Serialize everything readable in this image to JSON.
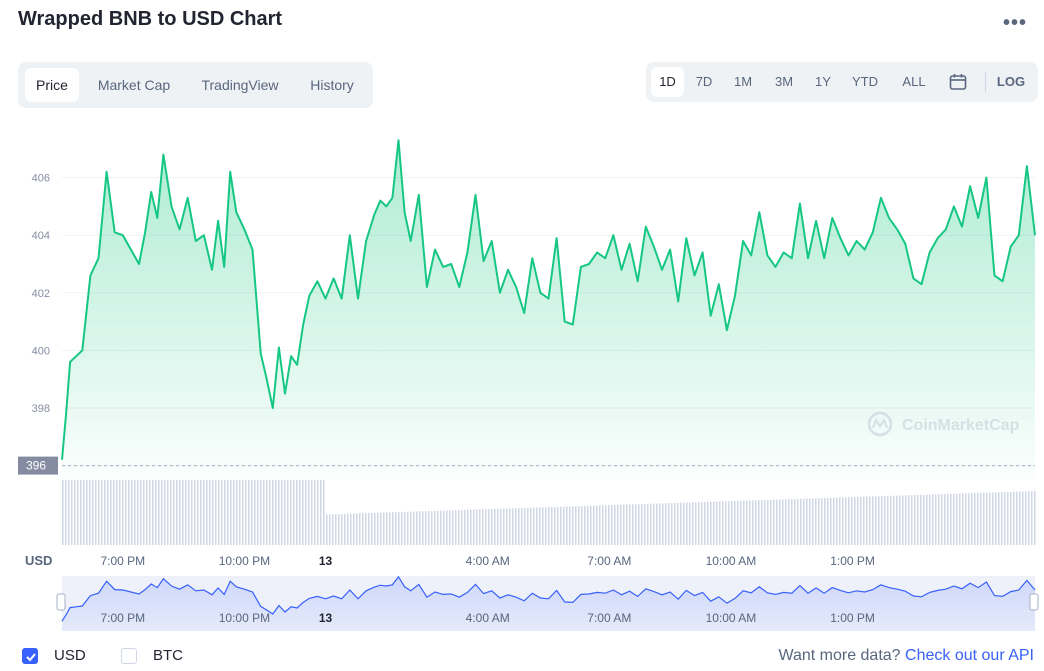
{
  "header": {
    "title": "Wrapped BNB to USD Chart",
    "menu_icon": "more-horizontal-icon"
  },
  "tabs": [
    {
      "label": "Price",
      "active": true
    },
    {
      "label": "Market Cap",
      "active": false
    },
    {
      "label": "TradingView",
      "active": false
    },
    {
      "label": "History",
      "active": false
    }
  ],
  "ranges": [
    {
      "label": "1D",
      "active": true
    },
    {
      "label": "7D",
      "active": false
    },
    {
      "label": "1M",
      "active": false
    },
    {
      "label": "3M",
      "active": false
    },
    {
      "label": "1Y",
      "active": false
    },
    {
      "label": "YTD",
      "active": false
    },
    {
      "label": "ALL",
      "active": false
    }
  ],
  "range_calendar_icon": "calendar-icon",
  "log_label": "LOG",
  "watermark": "CoinMarketCap",
  "currency_label": "USD",
  "current_price_marker": "396",
  "colors": {
    "line": "#16c784",
    "volume": "#cfd6e4",
    "accent": "#3861fb",
    "navigator_fill": "#e7ebfb",
    "navigator_line": "#3861fb"
  },
  "chart_data": {
    "type": "area",
    "ylim": [
      395.5,
      408
    ],
    "yticks": [
      396,
      398,
      400,
      402,
      404,
      406
    ],
    "x_tick_labels": [
      "7:00 PM",
      "10:00 PM",
      "13",
      "4:00 AM",
      "7:00 AM",
      "10:00 AM",
      "1:00 PM"
    ],
    "x_tick_hours": [
      1.5,
      4.5,
      6.5,
      10.5,
      13.5,
      16.5,
      19.5
    ],
    "x_range_hours": [
      0,
      24
    ],
    "price_series": {
      "x_hours": [
        0,
        0.1,
        0.2,
        0.35,
        0.5,
        0.7,
        0.9,
        1.1,
        1.3,
        1.5,
        1.7,
        1.9,
        2.05,
        2.2,
        2.35,
        2.5,
        2.7,
        2.9,
        3.1,
        3.3,
        3.5,
        3.7,
        3.85,
        4.0,
        4.15,
        4.3,
        4.5,
        4.7,
        4.9,
        5.05,
        5.2,
        5.35,
        5.5,
        5.65,
        5.8,
        5.95,
        6.1,
        6.3,
        6.5,
        6.7,
        6.9,
        7.1,
        7.3,
        7.5,
        7.7,
        7.85,
        8.0,
        8.15,
        8.3,
        8.45,
        8.6,
        8.8,
        9.0,
        9.2,
        9.4,
        9.6,
        9.8,
        10.0,
        10.2,
        10.4,
        10.6,
        10.8,
        11.0,
        11.2,
        11.4,
        11.6,
        11.8,
        12.0,
        12.2,
        12.4,
        12.6,
        12.8,
        13.0,
        13.2,
        13.4,
        13.6,
        13.8,
        14.0,
        14.2,
        14.4,
        14.6,
        14.8,
        15.0,
        15.2,
        15.4,
        15.6,
        15.8,
        16.0,
        16.2,
        16.4,
        16.6,
        16.8,
        17.0,
        17.2,
        17.4,
        17.6,
        17.8,
        18.0,
        18.2,
        18.4,
        18.6,
        18.8,
        19.0,
        19.2,
        19.4,
        19.6,
        19.8,
        20.0,
        20.2,
        20.4,
        20.6,
        20.8,
        21.0,
        21.2,
        21.4,
        21.6,
        21.8,
        22.0,
        22.2,
        22.4,
        22.6,
        22.8,
        23.0,
        23.2,
        23.4,
        23.6,
        23.8,
        24.0
      ],
      "y": [
        396.2,
        397.8,
        399.6,
        399.8,
        400.0,
        402.6,
        403.2,
        406.2,
        404.1,
        404.0,
        403.5,
        403.0,
        404.1,
        405.5,
        404.6,
        406.8,
        405.0,
        404.2,
        405.3,
        403.8,
        404.0,
        402.8,
        404.5,
        402.9,
        406.2,
        404.8,
        404.2,
        403.5,
        399.9,
        399.0,
        398.0,
        400.1,
        398.5,
        399.8,
        399.5,
        400.9,
        401.9,
        402.4,
        401.8,
        402.5,
        401.8,
        404.0,
        401.8,
        403.8,
        404.7,
        405.2,
        405.0,
        405.3,
        407.3,
        404.8,
        403.8,
        405.4,
        402.2,
        403.5,
        402.9,
        403.0,
        402.2,
        403.4,
        405.4,
        403.1,
        403.8,
        402.0,
        402.8,
        402.2,
        401.3,
        403.2,
        402.0,
        401.8,
        403.9,
        401.0,
        400.9,
        402.9,
        403.0,
        403.4,
        403.2,
        404.0,
        402.8,
        403.7,
        402.4,
        404.3,
        403.6,
        402.8,
        403.5,
        401.7,
        403.9,
        402.6,
        403.4,
        401.2,
        402.3,
        400.7,
        401.9,
        403.8,
        403.3,
        404.8,
        403.3,
        402.9,
        403.4,
        403.2,
        405.1,
        403.2,
        404.5,
        403.2,
        404.6,
        403.9,
        403.3,
        403.8,
        403.5,
        404.1,
        405.3,
        404.6,
        404.2,
        403.7,
        402.5,
        402.3,
        403.4,
        403.9,
        404.2,
        405.0,
        404.3,
        405.7,
        404.6,
        406.0,
        402.6,
        402.4,
        403.6,
        404.0,
        406.4,
        404.0
      ]
    },
    "volume_series": {
      "x_hours": [
        0,
        6.49,
        6.51,
        24
      ],
      "values": [
        1.0,
        1.0,
        0.47,
        0.83
      ],
      "note_scale": "relative"
    },
    "navigator": {
      "x_tick_labels": [
        "7:00 PM",
        "10:00 PM",
        "13",
        "4:00 AM",
        "7:00 AM",
        "10:00 AM",
        "1:00 PM"
      ]
    }
  },
  "footer": {
    "usd_label": "USD",
    "usd_checked": true,
    "btc_label": "BTC",
    "btc_checked": false,
    "more_data_text": "Want more data?",
    "more_data_link": "Check out our API"
  }
}
